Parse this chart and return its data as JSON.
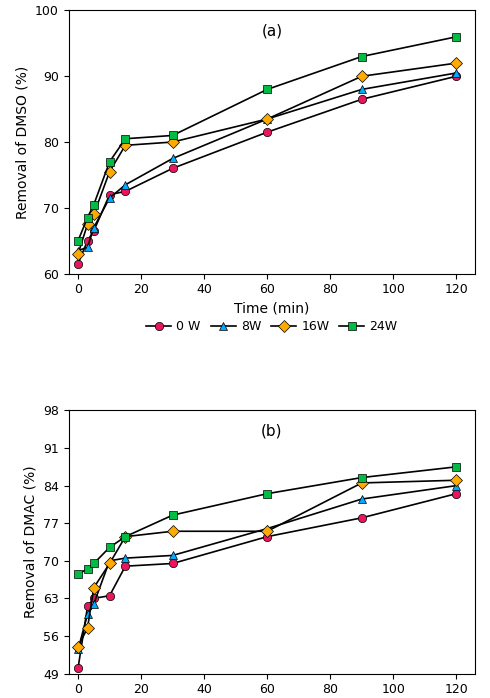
{
  "time": [
    0,
    3,
    5,
    10,
    15,
    30,
    60,
    90,
    120
  ],
  "panel_a": {
    "label": "(a)",
    "ylabel": "Removal of DMSO (%)",
    "ylim": [
      60,
      100
    ],
    "yticks": [
      60,
      70,
      80,
      90,
      100
    ],
    "series": {
      "0W": {
        "values": [
          61.5,
          65.0,
          66.5,
          72.0,
          72.5,
          76.0,
          81.5,
          86.5,
          90.0
        ],
        "color": "#e8175d",
        "marker": "o",
        "label": "0 W"
      },
      "8W": {
        "values": [
          63.5,
          64.0,
          67.0,
          71.5,
          73.5,
          77.5,
          83.5,
          88.0,
          90.5
        ],
        "color": "#00aaff",
        "marker": "^",
        "label": "8W"
      },
      "16W": {
        "values": [
          63.0,
          67.5,
          69.0,
          75.5,
          79.5,
          80.0,
          83.5,
          90.0,
          92.0
        ],
        "color": "#ffaa00",
        "marker": "D",
        "label": "16W"
      },
      "24W": {
        "values": [
          65.0,
          68.5,
          70.5,
          77.0,
          80.5,
          81.0,
          88.0,
          93.0,
          96.0
        ],
        "color": "#00bb44",
        "marker": "s",
        "label": "24W"
      }
    }
  },
  "panel_b": {
    "label": "(b)",
    "ylabel": "Removal of DMAC (%)",
    "ylim": [
      49,
      98
    ],
    "yticks": [
      49,
      56,
      63,
      70,
      77,
      84,
      91,
      98
    ],
    "series": {
      "0W": {
        "values": [
          50.0,
          61.5,
          63.0,
          63.5,
          69.0,
          69.5,
          74.5,
          78.0,
          82.5
        ],
        "color": "#e8175d",
        "marker": "o",
        "label": "0 W"
      },
      "8W": {
        "values": [
          53.5,
          60.0,
          62.0,
          70.0,
          70.5,
          71.0,
          76.0,
          81.5,
          84.0
        ],
        "color": "#00aaff",
        "marker": "^",
        "label": "8 W"
      },
      "16W": {
        "values": [
          54.0,
          57.5,
          65.0,
          69.5,
          74.5,
          75.5,
          75.5,
          84.5,
          85.0
        ],
        "color": "#ffaa00",
        "marker": "D",
        "label": "16W"
      },
      "24W": {
        "values": [
          67.5,
          68.5,
          69.5,
          72.5,
          74.5,
          78.5,
          82.5,
          85.5,
          87.5
        ],
        "color": "#00bb44",
        "marker": "s",
        "label": "24 W"
      }
    }
  },
  "xlabel": "Time (min)",
  "xticks": [
    0,
    20,
    40,
    60,
    80,
    100,
    120
  ]
}
